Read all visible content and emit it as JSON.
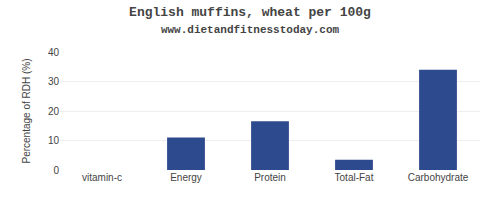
{
  "chart_data": {
    "type": "bar",
    "title": "English muffins, wheat per 100g",
    "subtitle": "www.dietandfitnesstoday.com",
    "ylabel": "Percentage of RDH (%)",
    "categories": [
      "vitamin-c",
      "Energy",
      "Protein",
      "Total-Fat",
      "Carbohydrate"
    ],
    "values": [
      0,
      11,
      16.5,
      3.5,
      34
    ],
    "color": "#2e4a8e",
    "ylim": [
      0,
      40
    ],
    "yticks": [
      0,
      10,
      20,
      30,
      40
    ],
    "grid": true
  }
}
